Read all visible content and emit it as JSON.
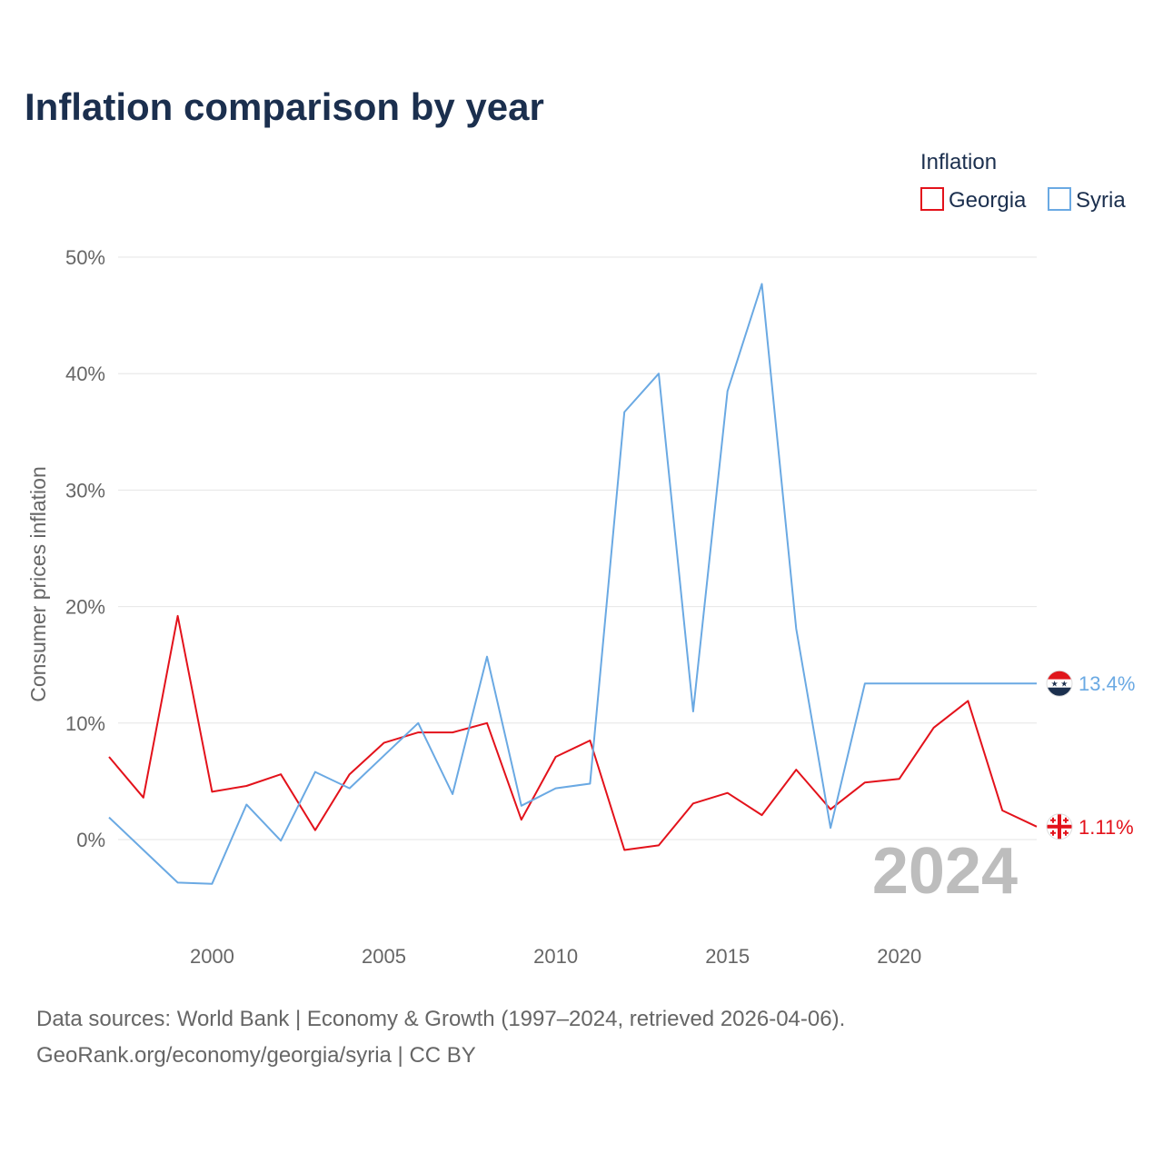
{
  "chart_data": {
    "type": "line",
    "title": "Inflation comparison by year",
    "legend_title": "Inflation",
    "ylabel": "Consumer prices inflation",
    "xlabel": "",
    "x": [
      1997,
      1998,
      1999,
      2000,
      2001,
      2002,
      2003,
      2004,
      2005,
      2006,
      2007,
      2008,
      2009,
      2010,
      2011,
      2012,
      2013,
      2014,
      2015,
      2016,
      2017,
      2018,
      2019,
      2020,
      2021,
      2022,
      2023,
      2024
    ],
    "series": [
      {
        "name": "Georgia",
        "color": "#e3121b",
        "values": [
          7.1,
          3.6,
          19.2,
          4.1,
          4.6,
          5.6,
          0.8,
          5.6,
          8.3,
          9.2,
          9.2,
          10.0,
          1.7,
          7.1,
          8.5,
          -0.9,
          -0.5,
          3.1,
          4.0,
          2.1,
          6.0,
          2.6,
          4.9,
          5.2,
          9.6,
          11.9,
          2.5,
          1.11
        ],
        "end_label": "1.11%",
        "end_icon": "georgia-flag-icon"
      },
      {
        "name": "Syria",
        "color": "#6aa9e3",
        "values": [
          1.9,
          -0.9,
          -3.7,
          -3.8,
          3.0,
          -0.1,
          5.8,
          4.4,
          7.2,
          10.0,
          3.9,
          15.7,
          2.9,
          4.4,
          4.8,
          36.7,
          40.0,
          11.0,
          38.5,
          47.7,
          18.1,
          1.0,
          13.4,
          13.4,
          13.4,
          13.4,
          13.4,
          13.4
        ],
        "end_label": "13.4%",
        "end_icon": "syria-flag-icon"
      }
    ],
    "y_ticks": [
      0,
      10,
      20,
      30,
      40,
      50
    ],
    "y_tick_labels": [
      "0%",
      "10%",
      "20%",
      "30%",
      "40%",
      "50%"
    ],
    "x_ticks": [
      2000,
      2005,
      2010,
      2015,
      2020
    ],
    "x_tick_labels": [
      "2000",
      "2005",
      "2010",
      "2015",
      "2020"
    ],
    "ylim": [
      -7,
      53
    ],
    "xlim": [
      1997,
      2024
    ],
    "grid": true,
    "legend_position": "top-right",
    "year_watermark": "2024"
  },
  "footer": {
    "line1": "Data sources: World Bank | Economy & Growth (1997–2024, retrieved 2026-04-06).",
    "line2": "GeoRank.org/economy/georgia/syria | CC BY"
  }
}
